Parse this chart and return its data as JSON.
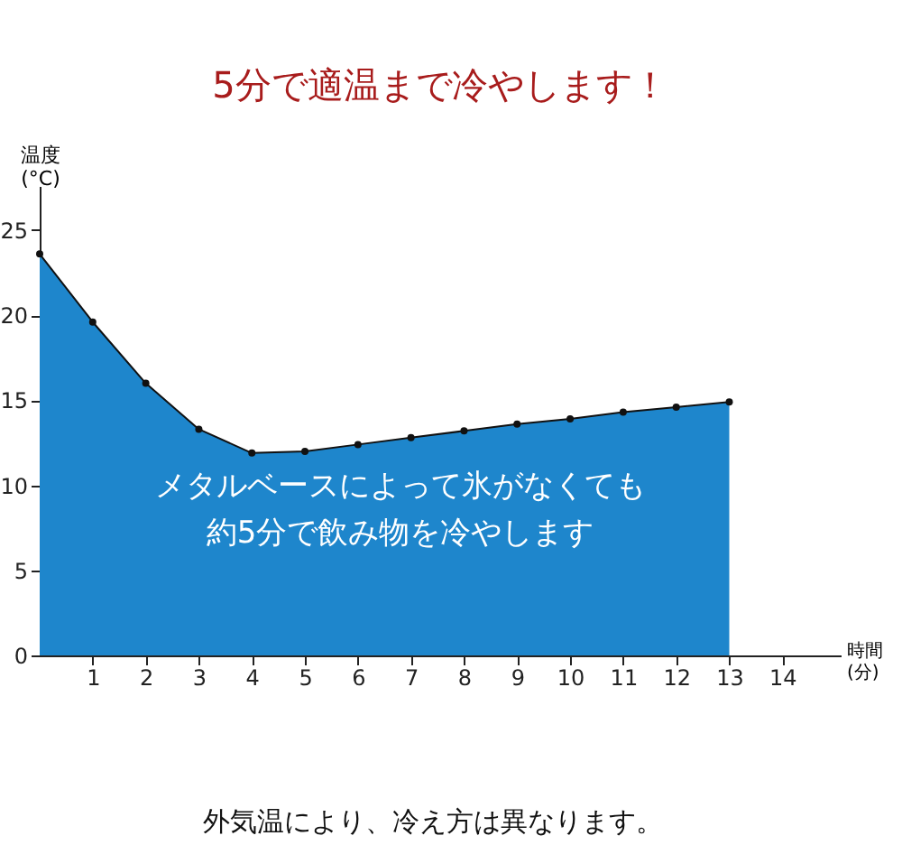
{
  "chart_data": {
    "type": "area",
    "title": "5分で適温まで冷やします！",
    "xlabel": "時間\n(分)",
    "ylabel": "温度\n(°C)",
    "x": [
      0,
      1,
      2,
      3,
      4,
      5,
      6,
      7,
      8,
      9,
      10,
      11,
      12,
      13
    ],
    "series": [
      {
        "color": "#1e86cc",
        "values": [
          23.6,
          19.6,
          16.0,
          13.3,
          11.9,
          12.0,
          12.4,
          12.8,
          13.2,
          13.6,
          13.9,
          14.3,
          14.6,
          14.9
        ]
      }
    ],
    "xlim": [
      0,
      15.1
    ],
    "xticks": [
      1,
      2,
      3,
      4,
      5,
      6,
      7,
      8,
      9,
      10,
      11,
      12,
      13,
      14
    ],
    "ylim": [
      0,
      27.6
    ],
    "yticks": [
      0,
      5,
      10,
      15,
      20,
      25
    ],
    "marker": "circle",
    "grid": false,
    "annotations": [
      "メタルベースによって氷がなくても",
      "約5分で飲み物を冷やします",
      "外気温により、冷え方は異なります。"
    ]
  }
}
